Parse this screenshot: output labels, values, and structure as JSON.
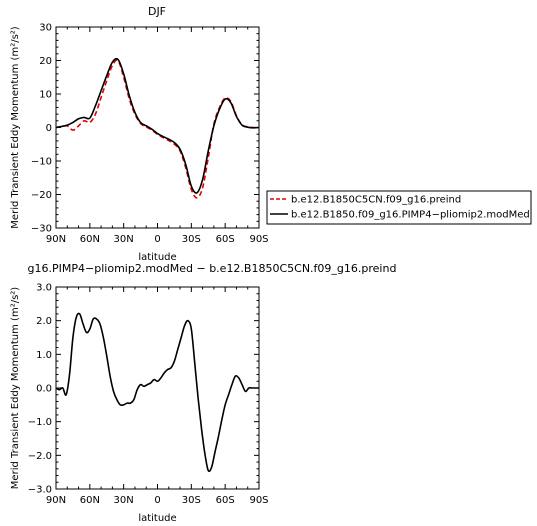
{
  "chart_data": [
    {
      "type": "line",
      "title": "DJF",
      "xlabel": "latitude",
      "ylabel": "Merid Transient Eddy Momentum (m²/s²)",
      "x": [
        -90,
        -85,
        -80,
        -75,
        -70,
        -65,
        -60,
        -55,
        -50,
        -45,
        -40,
        -35,
        -30,
        -25,
        -20,
        -15,
        -10,
        -5,
        0,
        5,
        10,
        15,
        20,
        25,
        30,
        35,
        40,
        45,
        50,
        55,
        60,
        65,
        70,
        75,
        80,
        85,
        90
      ],
      "xlim": [
        -90,
        90
      ],
      "ylim": [
        -30,
        30
      ],
      "xticks": [
        -90,
        -60,
        -30,
        0,
        30,
        60,
        90
      ],
      "xticklabels": [
        "90N",
        "60N",
        "30N",
        "0",
        "30S",
        "60S",
        "90S"
      ],
      "yticks": [
        -30,
        -20,
        -10,
        0,
        10,
        20,
        30
      ],
      "yticklabels": [
        "−30",
        "−20",
        "−10",
        "0",
        "10",
        "20",
        "30"
      ],
      "legend_position": "right",
      "series": [
        {
          "name": "b.e12.B1850C5CN.f09_g16.preind",
          "color": "#e00000",
          "dash": "dashed",
          "values": [
            0,
            0.3,
            0.5,
            -0.8,
            0.5,
            2,
            1.5,
            4,
            9,
            14,
            18.5,
            20,
            15,
            8.5,
            4,
            1.2,
            0.2,
            -0.8,
            -2,
            -3,
            -3.9,
            -5,
            -7,
            -12,
            -18.5,
            -21,
            -18,
            -9,
            1,
            6,
            8.8,
            7.8,
            3.5,
            0.8,
            0.2,
            0,
            0
          ]
        },
        {
          "name": "b.e12.B1850.f09_g16.PIMP4−pliomip2.modMed",
          "color": "#000000",
          "dash": "solid",
          "values": [
            0,
            0.3,
            0.7,
            1.5,
            2.6,
            3,
            2.8,
            6.5,
            11,
            15.5,
            19.5,
            20.3,
            16,
            9.5,
            4.5,
            1.5,
            0.5,
            -0.5,
            -1.8,
            -2.7,
            -3.5,
            -4.5,
            -6.5,
            -11,
            -17.5,
            -19.5,
            -15.5,
            -7,
            0.5,
            5.5,
            8.5,
            7.4,
            3.3,
            0.7,
            0.1,
            -0.1,
            0
          ]
        }
      ]
    },
    {
      "type": "line",
      "title": "g16.PIMP4−pliomip2.modMed − b.e12.B1850C5CN.f09_g16.preind",
      "xlabel": "latitude",
      "ylabel": "Merid Transient Eddy Momentum (m²/s²)",
      "x": [
        -90,
        -87,
        -84,
        -81,
        -78,
        -75,
        -72,
        -69,
        -66,
        -63,
        -60,
        -57,
        -54,
        -51,
        -48,
        -45,
        -42,
        -39,
        -36,
        -33,
        -30,
        -27,
        -24,
        -21,
        -18,
        -15,
        -12,
        -9,
        -6,
        -3,
        0,
        3,
        6,
        9,
        12,
        15,
        18,
        21,
        24,
        27,
        30,
        33,
        36,
        39,
        42,
        45,
        48,
        51,
        54,
        57,
        60,
        63,
        66,
        69,
        72,
        75,
        78,
        81,
        84,
        87,
        90
      ],
      "xlim": [
        -90,
        90
      ],
      "ylim": [
        -3,
        3
      ],
      "xticks": [
        -90,
        -60,
        -30,
        0,
        30,
        60,
        90
      ],
      "xticklabels": [
        "90N",
        "60N",
        "30N",
        "0",
        "30S",
        "60S",
        "90S"
      ],
      "yticks": [
        -3,
        -2,
        -1,
        0,
        1,
        2,
        3
      ],
      "yticklabels": [
        "−3.0",
        "−2.0",
        "−1.0",
        "0.0",
        "1.0",
        "2.0",
        "3.0"
      ],
      "series": [
        {
          "name": "",
          "color": "#000000",
          "dash": "solid",
          "values": [
            0,
            -0.05,
            0,
            -0.2,
            0.4,
            1.5,
            2.1,
            2.2,
            1.9,
            1.65,
            1.75,
            2.05,
            2.05,
            1.9,
            1.5,
            0.95,
            0.35,
            -0.1,
            -0.35,
            -0.5,
            -0.5,
            -0.45,
            -0.45,
            -0.35,
            -0.05,
            0.1,
            0.05,
            0.1,
            0.15,
            0.25,
            0.2,
            0.3,
            0.45,
            0.55,
            0.6,
            0.8,
            1.15,
            1.5,
            1.85,
            2.0,
            1.75,
            0.75,
            -0.3,
            -1.2,
            -1.95,
            -2.45,
            -2.35,
            -1.9,
            -1.45,
            -0.95,
            -0.5,
            -0.2,
            0.1,
            0.35,
            0.3,
            0.1,
            -0.1,
            0,
            0,
            0,
            0
          ]
        }
      ]
    }
  ]
}
